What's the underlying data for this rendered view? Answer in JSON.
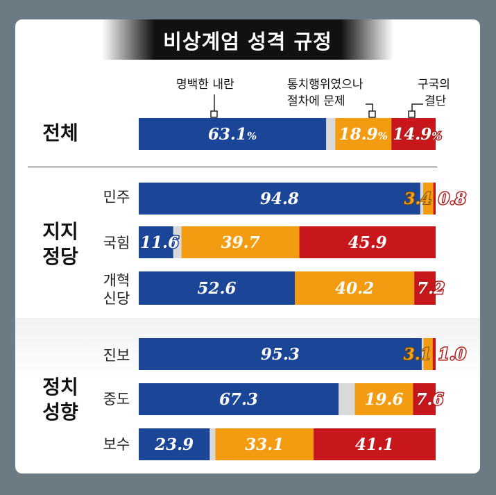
{
  "title": "비상계엄 성격 규정",
  "legend": {
    "insurrection": "명백한 내란",
    "governance_line1": "통치행위였으나",
    "governance_line2": "절차에 문제",
    "decision_line1": "구국의",
    "decision_line2": "결단"
  },
  "colors": {
    "blue": "#1b4597",
    "orange": "#f39c12",
    "red": "#c8161d",
    "gray": "#d9d9d9"
  },
  "sections": {
    "total": "전체",
    "party_line1": "지지",
    "party_line2": "정당",
    "ideology_line1": "정치",
    "ideology_line2": "성향"
  },
  "row_labels": {
    "minju": "민주",
    "kukhim": "국힘",
    "reform_line1": "개혁",
    "reform_line2": "신당",
    "progressive": "진보",
    "moderate": "중도",
    "conservative": "보수"
  },
  "chart_data": {
    "type": "bar",
    "orientation": "horizontal-stacked",
    "title": "비상계엄 성격 규정",
    "series_names": [
      "명백한 내란",
      "통치행위였으나 절차에 문제",
      "구국의 결단"
    ],
    "max": 100,
    "rows": [
      {
        "key": "total",
        "values": [
          63.1,
          18.9,
          14.9
        ],
        "labels": [
          "63.1",
          "18.9",
          "14.9"
        ],
        "unit": "%"
      },
      {
        "key": "minju",
        "values": [
          94.8,
          3.4,
          0.8
        ],
        "labels": [
          "94.8",
          "3.4",
          "0.8"
        ]
      },
      {
        "key": "kukhim",
        "values": [
          11.6,
          39.7,
          45.9
        ],
        "labels": [
          "11.6",
          "39.7",
          "45.9"
        ]
      },
      {
        "key": "reform",
        "values": [
          52.6,
          40.2,
          7.2
        ],
        "labels": [
          "52.6",
          "40.2",
          "7.2"
        ]
      },
      {
        "key": "progressive",
        "values": [
          95.3,
          3.1,
          1.0
        ],
        "labels": [
          "95.3",
          "3.1",
          "1.0"
        ]
      },
      {
        "key": "moderate",
        "values": [
          67.3,
          19.6,
          7.6
        ],
        "labels": [
          "67.3",
          "19.6",
          "7.6"
        ]
      },
      {
        "key": "conservative",
        "values": [
          23.9,
          33.1,
          41.1
        ],
        "labels": [
          "23.9",
          "33.1",
          "41.1"
        ]
      }
    ]
  }
}
